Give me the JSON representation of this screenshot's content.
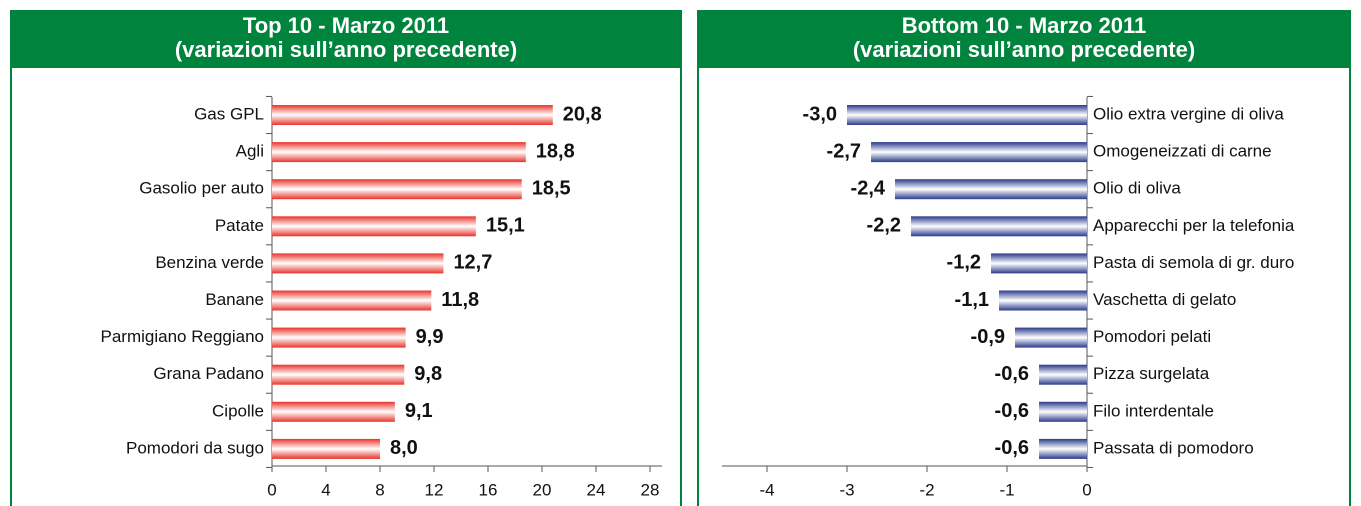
{
  "chart_data": [
    {
      "type": "bar",
      "title": "Top 10 - Marzo 2011",
      "subtitle": "(variazioni sull’anno precedente)",
      "categories": [
        "Gas GPL",
        "Agli",
        "Gasolio per auto",
        "Patate",
        "Benzina verde",
        "Banane",
        "Parmigiano Reggiano",
        "Grana Padano",
        "Cipolle",
        "Pomodori da sugo"
      ],
      "values": [
        20.8,
        18.8,
        18.5,
        15.1,
        12.7,
        11.8,
        9.9,
        9.8,
        9.1,
        8.0
      ],
      "value_labels": [
        "20,8",
        "18,8",
        "18,5",
        "15,1",
        "12,7",
        "11,8",
        "9,9",
        "9,8",
        "9,1",
        "8,0"
      ],
      "color": "#e8342a",
      "xlim": [
        0,
        28
      ],
      "xticks": [
        0,
        4,
        8,
        12,
        16,
        20,
        24,
        28
      ]
    },
    {
      "type": "bar",
      "title": "Bottom 10 - Marzo 2011",
      "subtitle": "(variazioni sull’anno precedente)",
      "categories": [
        "Olio extra vergine di oliva",
        "Omogeneizzati di carne",
        "Olio di oliva",
        "Apparecchi per la telefonia",
        "Pasta di semola di gr. duro",
        "Vaschetta di gelato",
        "Pomodori pelati",
        "Pizza surgelata",
        "Filo interdentale",
        "Passata di pomodoro"
      ],
      "values": [
        -3.0,
        -2.7,
        -2.4,
        -2.2,
        -1.2,
        -1.1,
        -0.9,
        -0.6,
        -0.6,
        -0.6
      ],
      "value_labels": [
        "-3,0",
        "-2,7",
        "-2,4",
        "-2,2",
        "-1,2",
        "-1,1",
        "-0,9",
        "-0,6",
        "-0,6",
        "-0,6"
      ],
      "color": "#2a3a8c",
      "xlim": [
        -4,
        0
      ],
      "xticks": [
        -4,
        -3,
        -2,
        -1,
        0
      ]
    }
  ]
}
